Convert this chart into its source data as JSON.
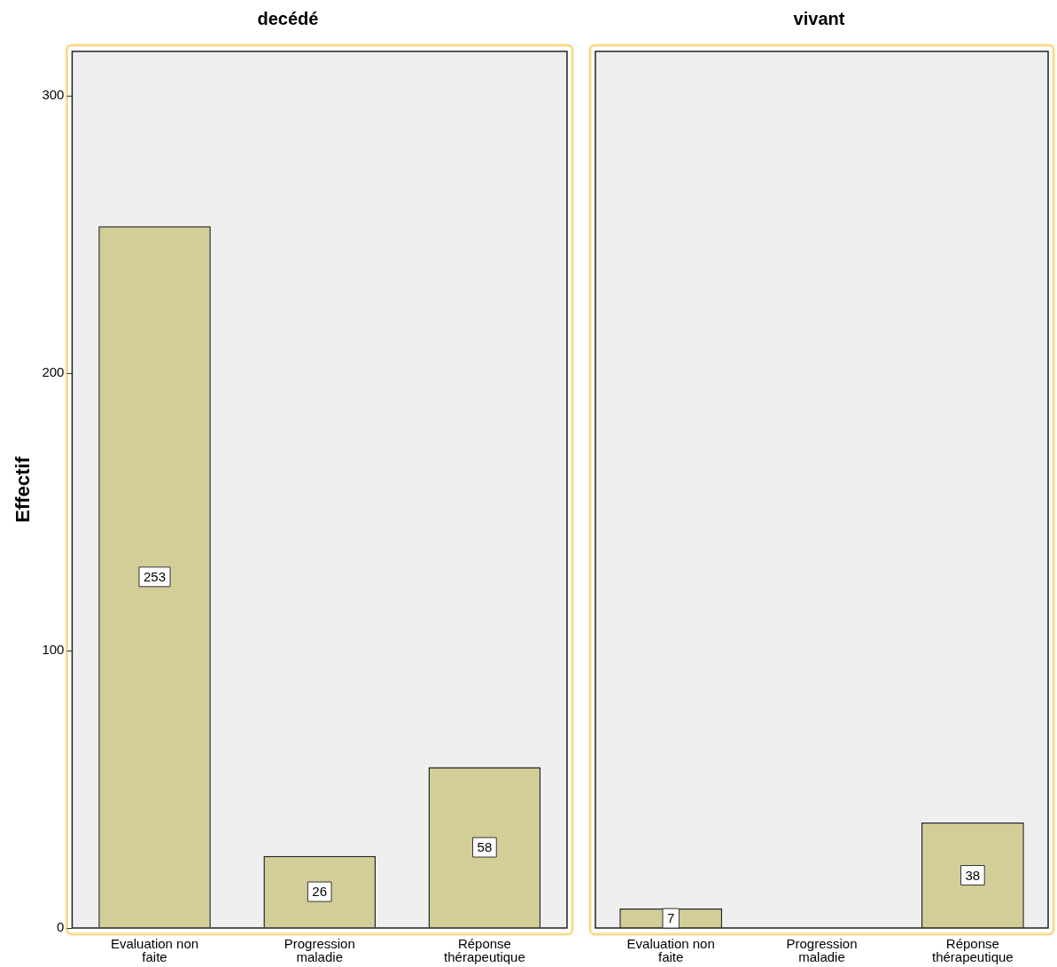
{
  "chart_data": [
    {
      "type": "bar",
      "title": "decédé",
      "ylabel": "Effectif",
      "categories": [
        "Evaluation non faite",
        "Progression maladie",
        "Réponse thérapeutique"
      ],
      "values": [
        253,
        26,
        58
      ],
      "color": "#d3cd97",
      "ylim": [
        0,
        316
      ],
      "yticks": [
        0,
        100,
        200,
        300
      ],
      "data_labels": true,
      "grid": false,
      "legend": false
    },
    {
      "type": "bar",
      "title": "vivant",
      "categories": [
        "Evaluation non faite",
        "Progression maladie",
        "Réponse thérapeutique"
      ],
      "values": [
        7,
        null,
        38
      ],
      "color": "#d3cd97",
      "ylim": [
        0,
        316
      ],
      "yticks": [
        0,
        100,
        200,
        300
      ],
      "data_labels": true,
      "grid": false,
      "legend": false,
      "tick_labels": "x"
    }
  ]
}
